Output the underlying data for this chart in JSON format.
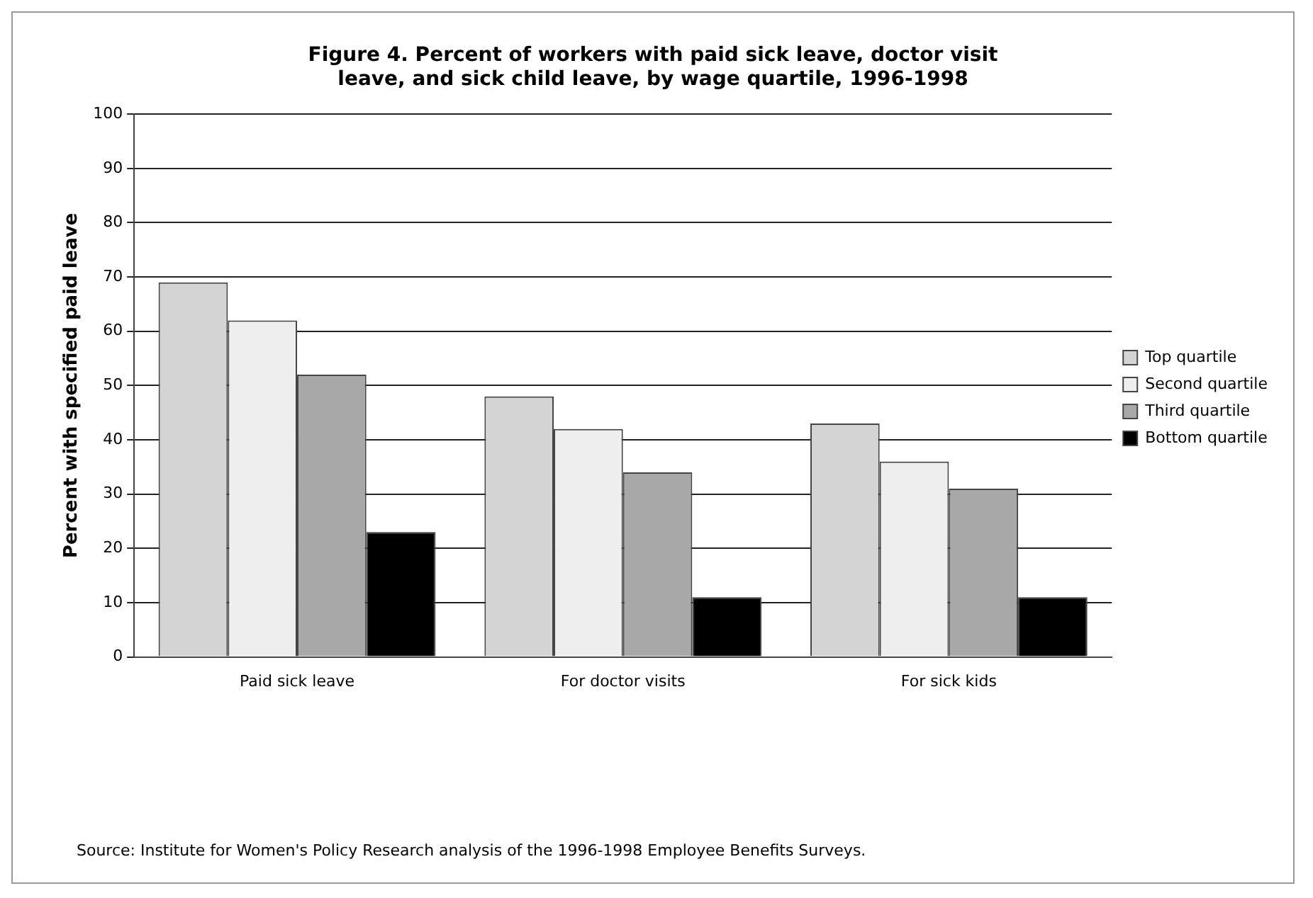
{
  "chart_data": {
    "type": "bar",
    "title": "Figure 4. Percent of workers with paid sick leave, doctor visit leave, and sick child leave, by wage quartile, 1996-1998",
    "ylabel": "Percent with specified paid leave",
    "categories": [
      "Paid sick leave",
      "For doctor visits",
      "For sick kids"
    ],
    "series": [
      {
        "name": "Top quartile",
        "color": "#d4d4d4",
        "values": [
          69,
          48,
          43
        ]
      },
      {
        "name": "Second quartile",
        "color": "#eeeeee",
        "values": [
          62,
          42,
          36
        ]
      },
      {
        "name": "Third quartile",
        "color": "#a8a8a8",
        "values": [
          52,
          34,
          31
        ]
      },
      {
        "name": "Bottom quartile",
        "color": "#000000",
        "values": [
          23,
          11,
          11
        ]
      }
    ],
    "ylim": [
      0,
      100
    ],
    "yticks": [
      0,
      10,
      20,
      30,
      40,
      50,
      60,
      70,
      80,
      90,
      100
    ],
    "grid": "y",
    "legend": "right",
    "annotations": [
      "Source: Institute for Women's Policy Research analysis of the 1996-1998 Employee Benefits Surveys."
    ]
  }
}
